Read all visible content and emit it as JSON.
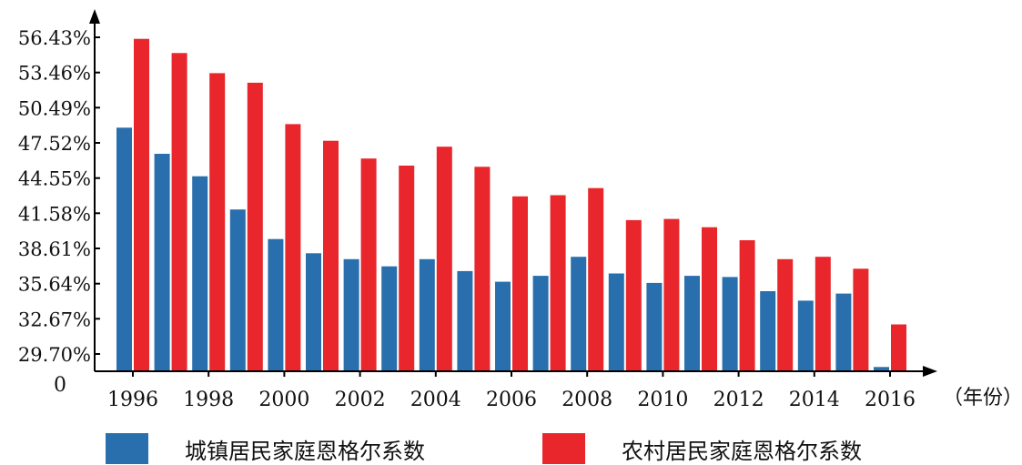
{
  "chart_data": {
    "type": "bar",
    "categories": [
      "1996",
      "1997",
      "1998",
      "1999",
      "2000",
      "2001",
      "2002",
      "2003",
      "2004",
      "2005",
      "2006",
      "2007",
      "2008",
      "2009",
      "2010",
      "2011",
      "2012",
      "2013",
      "2014",
      "2015",
      "2016"
    ],
    "x_tick_labels": [
      "1996",
      "1998",
      "2000",
      "2002",
      "2004",
      "2006",
      "2008",
      "2010",
      "2012",
      "2014",
      "2016"
    ],
    "xlabel": "（年份）",
    "origin_label": "0",
    "y_tick_labels": [
      "29.70%",
      "32.67%",
      "35.64%",
      "38.61%",
      "41.58%",
      "44.55%",
      "47.52%",
      "50.49%",
      "53.46%",
      "56.43%"
    ],
    "y_ticks": [
      29.7,
      32.67,
      35.64,
      38.61,
      41.58,
      44.55,
      47.52,
      50.49,
      53.46,
      56.43
    ],
    "ylim": [
      27.4,
      58.8
    ],
    "series": [
      {
        "name": "城镇居民家庭恩格尔系数",
        "color": "#2a6fad",
        "values": [
          48.8,
          46.6,
          44.7,
          41.9,
          39.4,
          38.2,
          37.7,
          37.1,
          37.7,
          36.7,
          35.8,
          36.3,
          37.9,
          36.5,
          35.7,
          36.3,
          36.2,
          35.0,
          34.2,
          34.8,
          28.6
        ]
      },
      {
        "name": "农村居民家庭恩格尔系数",
        "color": "#e8262b",
        "values": [
          56.3,
          55.1,
          53.4,
          52.6,
          49.1,
          47.7,
          46.2,
          45.6,
          47.2,
          45.5,
          43.0,
          43.1,
          43.7,
          41.0,
          41.1,
          40.4,
          39.3,
          37.7,
          37.9,
          36.9,
          32.2
        ]
      }
    ],
    "legend_position": "bottom",
    "grid": false
  }
}
